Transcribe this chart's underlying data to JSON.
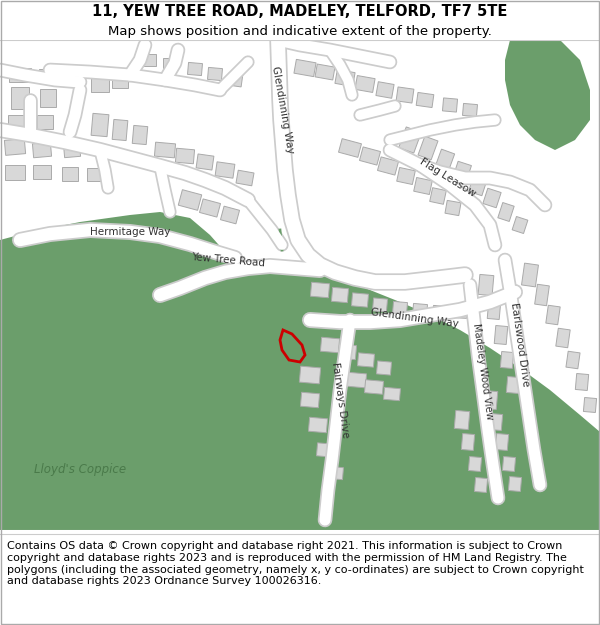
{
  "title": "11, YEW TREE ROAD, MADELEY, TELFORD, TF7 5TE",
  "subtitle": "Map shows position and indicative extent of the property.",
  "copyright_text": "Contains OS data © Crown copyright and database right 2021. This information is subject to Crown copyright and database rights 2023 and is reproduced with the permission of HM Land Registry. The polygons (including the associated geometry, namely x, y co-ordinates) are subject to Crown copyright and database rights 2023 Ordnance Survey 100026316.",
  "title_fontsize": 10.5,
  "subtitle_fontsize": 9.5,
  "copyright_fontsize": 8.0,
  "map_bg_color": "#ffffff",
  "building_fill": "#d8d8d8",
  "building_stroke": "#aaaaaa",
  "road_fill": "#ffffff",
  "road_stroke": "#cccccc",
  "green_fill": "#6b9e6b",
  "green_fill2": "#7aad7a",
  "highlight_color": "#cc0000",
  "label_color": "#333333",
  "lloyd_color": "#4a7a4a",
  "header_bg": "#ffffff",
  "footer_bg": "#ffffff",
  "divider_color": "#cccccc"
}
